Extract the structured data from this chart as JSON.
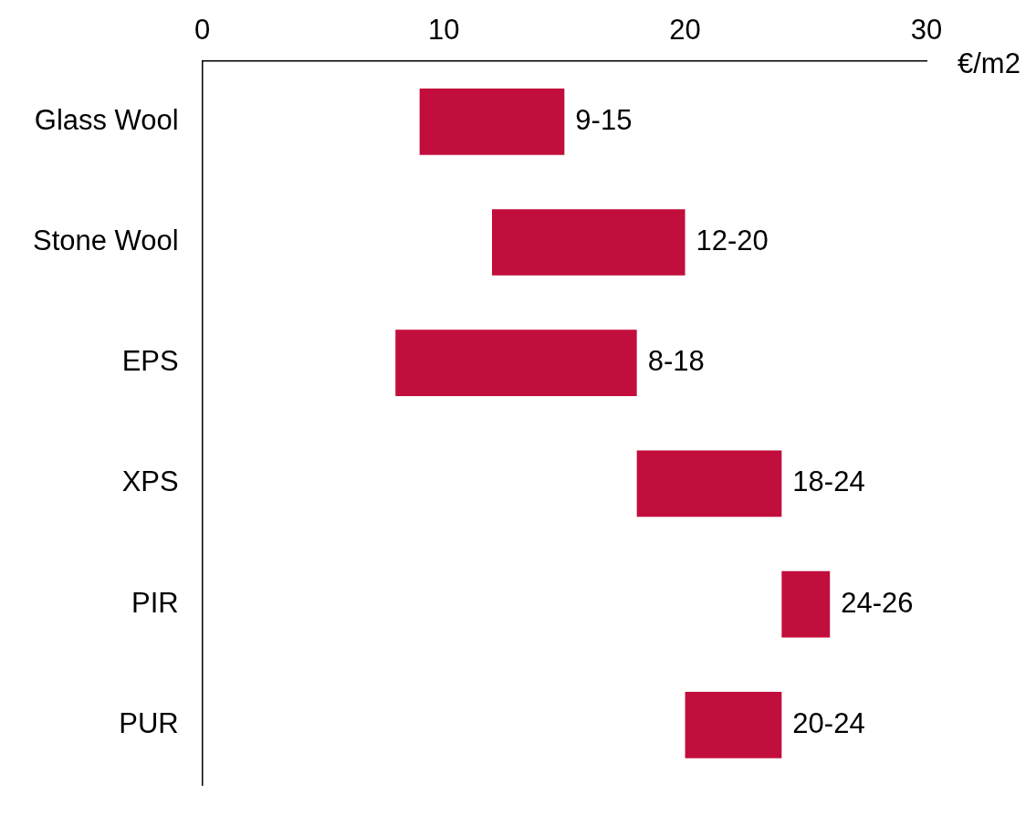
{
  "chart_data": {
    "type": "bar",
    "orientation": "horizontal",
    "xlabel": "€/m2",
    "categories": [
      "Glass Wool",
      "Stone Wool",
      "EPS",
      "XPS",
      "PIR",
      "PUR"
    ],
    "base": [
      9,
      12,
      8,
      18,
      24,
      20
    ],
    "values": [
      6,
      8,
      10,
      6,
      2,
      4
    ],
    "value_labels": [
      "9-15",
      "12-20",
      "8-18",
      "18-24",
      "24-26",
      "20-24"
    ],
    "color": "#c20e3d",
    "xlim": [
      0,
      30
    ],
    "xticks": [
      0,
      10,
      20,
      30
    ]
  }
}
